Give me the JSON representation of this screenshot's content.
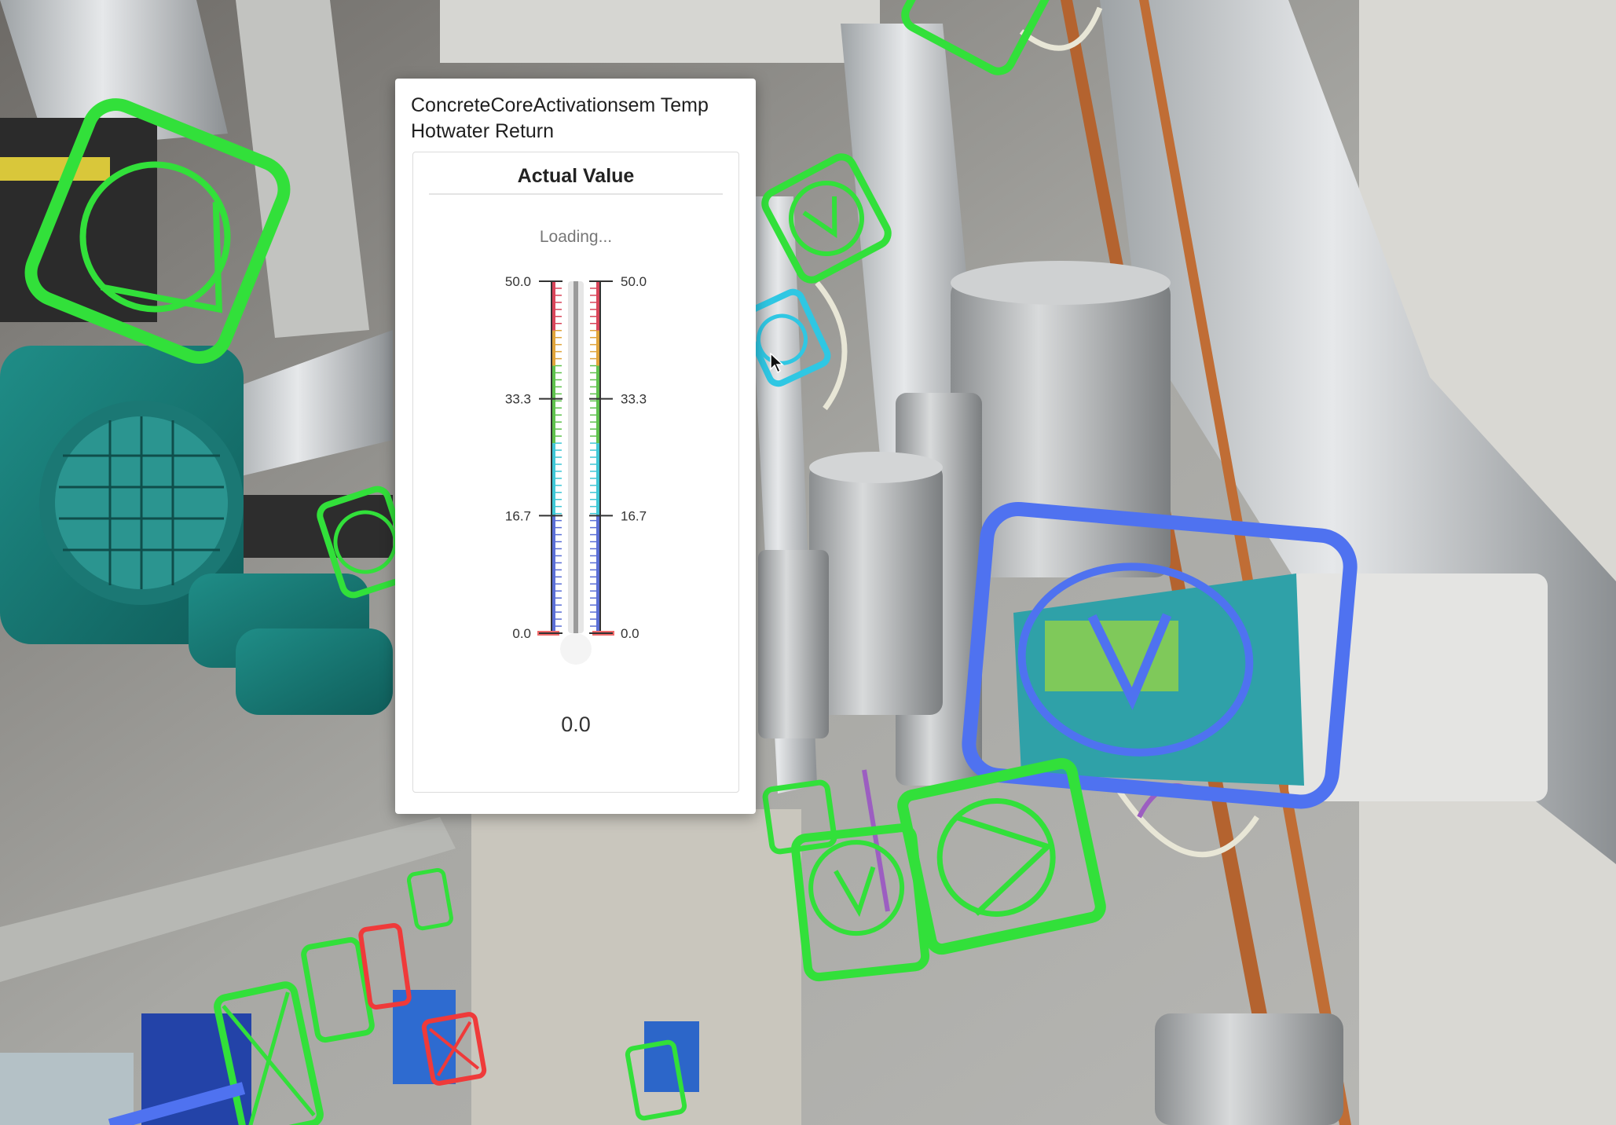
{
  "widget": {
    "title": "ConcreteCoreActivationsem Temp Hotwater Return",
    "panel_heading": "Actual Value",
    "status_text": "Loading...",
    "current_value": "0.0",
    "current_value_numeric": 0.0,
    "scale": {
      "min": 0.0,
      "max": 50.0,
      "tick_labels": [
        "50.0",
        "33.3",
        "16.7",
        "0.0"
      ],
      "color_bands": [
        {
          "from": 0.0,
          "to": 16.7,
          "color": "#5b6fd6"
        },
        {
          "from": 16.7,
          "to": 27.0,
          "color": "#3fc7d6"
        },
        {
          "from": 27.0,
          "to": 38.0,
          "color": "#5fc24d"
        },
        {
          "from": 38.0,
          "to": 43.0,
          "color": "#e0a43a"
        },
        {
          "from": 43.0,
          "to": 50.0,
          "color": "#d9455a"
        }
      ]
    }
  },
  "overlay_markers": {
    "colors": {
      "active": "#32e03a",
      "selected": "#4f72f0",
      "hover": "#2fc7e3",
      "alarm": "#ef3a3a"
    },
    "items": [
      {
        "icon": "pump-symbol-icon",
        "state": "active"
      },
      {
        "icon": "valve-symbol-icon",
        "state": "active"
      },
      {
        "icon": "valve-symbol-icon",
        "state": "active"
      },
      {
        "icon": "valve-symbol-icon",
        "state": "hover"
      },
      {
        "icon": "valve-symbol-icon",
        "state": "active"
      },
      {
        "icon": "valve-symbol-icon",
        "state": "selected"
      },
      {
        "icon": "pump-symbol-icon",
        "state": "active"
      },
      {
        "icon": "valve-symbol-icon",
        "state": "active"
      },
      {
        "icon": "valve-symbol-icon",
        "state": "active"
      },
      {
        "icon": "damper-symbol-icon",
        "state": "active"
      },
      {
        "icon": "valve-symbol-icon",
        "state": "active"
      },
      {
        "icon": "valve-symbol-icon",
        "state": "alarm"
      },
      {
        "icon": "fan-symbol-icon",
        "state": "alarm"
      },
      {
        "icon": "valve-symbol-icon",
        "state": "active"
      }
    ]
  }
}
